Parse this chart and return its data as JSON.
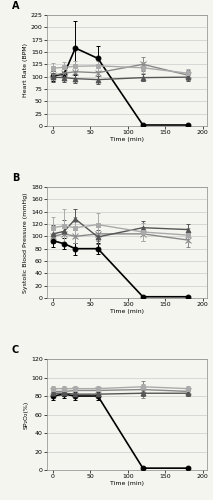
{
  "time_points": [
    0,
    15,
    30,
    60,
    120,
    180
  ],
  "panel_A": {
    "title": "A",
    "ylabel": "Heart Rate (BPM)",
    "ylim": [
      0,
      225
    ],
    "yticks": [
      0,
      25,
      50,
      75,
      100,
      125,
      150,
      175,
      200,
      225
    ],
    "series": {
      "control": {
        "y": [
          102,
          105,
          158,
          137,
          2,
          2
        ],
        "yerr": [
          10,
          12,
          55,
          25,
          1,
          1
        ],
        "color": "#000000",
        "marker": "o",
        "linestyle": "-",
        "linewidth": 1.2,
        "markersize": 3.5
      },
      "early_ITClamp": {
        "y": [
          103,
          107,
          110,
          108,
          125,
          103
        ],
        "yerr": [
          8,
          10,
          14,
          12,
          14,
          10
        ],
        "color": "#888888",
        "marker": "x",
        "linestyle": "-",
        "linewidth": 1.0,
        "markersize": 4
      },
      "standard_gauze": {
        "y": [
          99,
          98,
          96,
          94,
          98,
          99
        ],
        "yerr": [
          9,
          8,
          9,
          8,
          7,
          7
        ],
        "color": "#555555",
        "marker": "^",
        "linestyle": "-",
        "linewidth": 1.0,
        "markersize": 3.5
      },
      "late_ITClamp": {
        "y": [
          117,
          119,
          121,
          122,
          118,
          107
        ],
        "yerr": [
          11,
          10,
          11,
          10,
          11,
          9
        ],
        "color": "#aaaaaa",
        "marker": "s",
        "linestyle": "-",
        "linewidth": 1.0,
        "markersize": 3.5
      }
    }
  },
  "panel_B": {
    "title": "B",
    "ylabel": "Systolic Blood Pressure (mmHg)",
    "ylim": [
      0,
      180
    ],
    "yticks": [
      0,
      20,
      40,
      60,
      80,
      100,
      120,
      140,
      160,
      180
    ],
    "series": {
      "control": {
        "y": [
          93,
          88,
          80,
          80,
          2,
          2
        ],
        "yerr": [
          10,
          9,
          10,
          9,
          1,
          1
        ],
        "color": "#000000",
        "marker": "o",
        "linestyle": "-",
        "linewidth": 1.2,
        "markersize": 3.5
      },
      "early_ITClamp": {
        "y": [
          100,
          104,
          100,
          104,
          104,
          94
        ],
        "yerr": [
          11,
          14,
          11,
          11,
          11,
          11
        ],
        "color": "#888888",
        "marker": "x",
        "linestyle": "-",
        "linewidth": 1.0,
        "markersize": 4
      },
      "standard_gauze": {
        "y": [
          104,
          108,
          128,
          99,
          114,
          111
        ],
        "yerr": [
          14,
          18,
          17,
          11,
          11,
          9
        ],
        "color": "#555555",
        "marker": "^",
        "linestyle": "-",
        "linewidth": 1.0,
        "markersize": 3.5
      },
      "late_ITClamp": {
        "y": [
          114,
          117,
          114,
          119,
          107,
          102
        ],
        "yerr": [
          17,
          28,
          17,
          19,
          14,
          11
        ],
        "color": "#aaaaaa",
        "marker": "s",
        "linestyle": "-",
        "linewidth": 1.0,
        "markersize": 3.5
      }
    }
  },
  "panel_C": {
    "title": "C",
    "ylabel": "SP₂O₂(%)",
    "xlabel": "Time (min)",
    "ylim": [
      0,
      120
    ],
    "yticks": [
      0,
      20,
      40,
      60,
      80,
      100,
      120
    ],
    "series": {
      "control": {
        "y": [
          80,
          82,
          80,
          80,
          2,
          2
        ],
        "yerr": [
          4,
          4,
          4,
          4,
          1,
          1
        ],
        "color": "#000000",
        "marker": "o",
        "linestyle": "-",
        "linewidth": 1.2,
        "markersize": 3.5
      },
      "early_ITClamp": {
        "y": [
          85,
          85,
          86,
          86,
          87,
          85
        ],
        "yerr": [
          3,
          3,
          3,
          3,
          9,
          3
        ],
        "color": "#888888",
        "marker": "x",
        "linestyle": "-",
        "linewidth": 1.0,
        "markersize": 4
      },
      "standard_gauze": {
        "y": [
          83,
          83,
          82,
          82,
          83,
          83
        ],
        "yerr": [
          3,
          3,
          3,
          3,
          3,
          3
        ],
        "color": "#555555",
        "marker": "^",
        "linestyle": "-",
        "linewidth": 1.0,
        "markersize": 3.5
      },
      "late_ITClamp": {
        "y": [
          88,
          88,
          88,
          88,
          90,
          88
        ],
        "yerr": [
          3,
          3,
          3,
          3,
          3,
          3
        ],
        "color": "#aaaaaa",
        "marker": "s",
        "linestyle": "-",
        "linewidth": 1.0,
        "markersize": 3.5
      }
    }
  },
  "xticks": [
    0,
    50,
    100,
    150,
    200
  ],
  "xlim": [
    -8,
    205
  ],
  "xlabel": "Time (min)",
  "background_color": "#f5f5f0",
  "grid_color": "#cccccc"
}
